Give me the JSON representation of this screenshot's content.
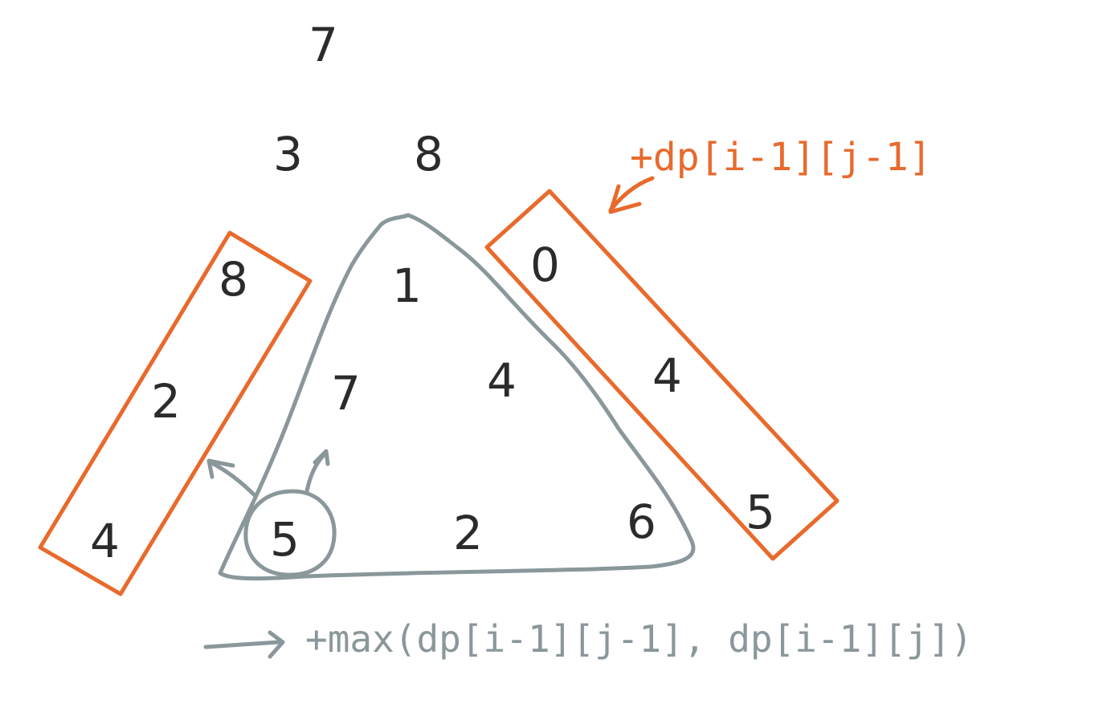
{
  "colors": {
    "accent": "#e86a2c",
    "annotation": "#8a979b",
    "ink": "#2b2b2b",
    "background": "#ffffff"
  },
  "triangle": {
    "row1": [
      "7"
    ],
    "row2": [
      "3",
      "8"
    ],
    "row3": [
      "8",
      "1",
      "0"
    ],
    "row4": [
      "2",
      "7",
      "4",
      "4"
    ],
    "row5": [
      "4",
      "5",
      "2",
      "6",
      "5"
    ]
  },
  "annotations": {
    "right_edge_formula": "+dp[i-1][j-1]",
    "inner_formula_arrow": "→",
    "inner_formula": "+max(dp[i-1][j-1], dp[i-1][j])"
  }
}
